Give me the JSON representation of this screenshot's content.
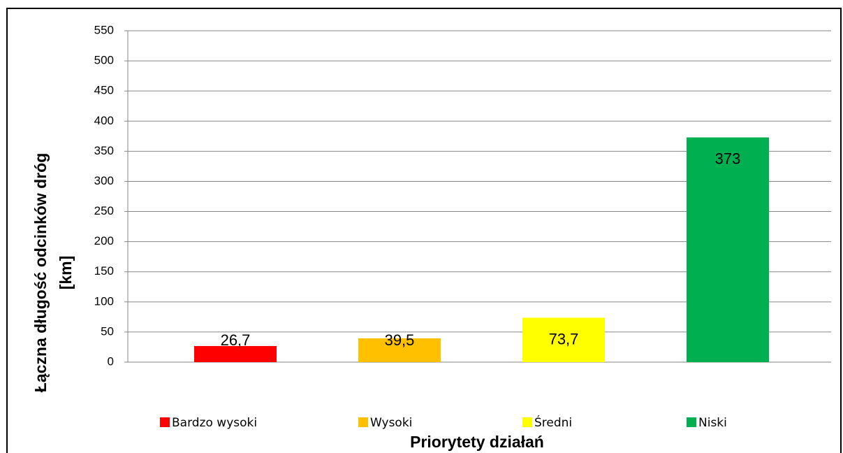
{
  "chart_data": {
    "type": "bar",
    "categories": [
      "Bardzo wysoki",
      "Wysoki",
      "Średni",
      "Niski"
    ],
    "values": [
      26.7,
      39.5,
      73.7,
      373
    ],
    "value_labels": [
      "26,7",
      "39,5",
      "73,7",
      "373"
    ],
    "colors": [
      "#ff0000",
      "#ffc000",
      "#ffff00",
      "#00b050"
    ],
    "ylim": [
      0,
      550
    ],
    "yticks": [
      0,
      50,
      100,
      150,
      200,
      250,
      300,
      350,
      400,
      450,
      500,
      550
    ],
    "grid": true,
    "legend": "bottom",
    "xlabel": "Priorytety działań",
    "ylabel": [
      "Łączna długość odcinków dróg",
      "[km]"
    ]
  }
}
